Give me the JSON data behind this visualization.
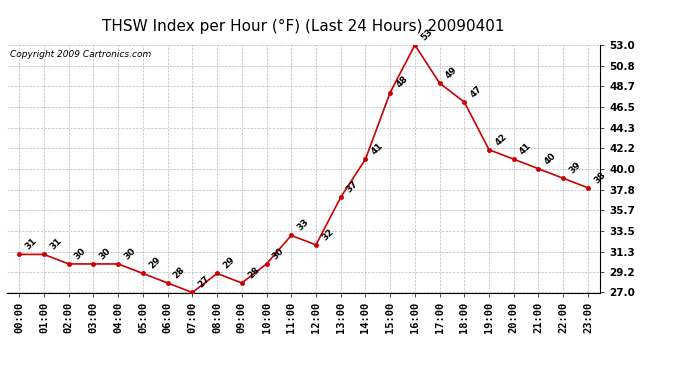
{
  "title": "THSW Index per Hour (°F) (Last 24 Hours) 20090401",
  "copyright": "Copyright 2009 Cartronics.com",
  "hours": [
    "00:00",
    "01:00",
    "02:00",
    "03:00",
    "04:00",
    "05:00",
    "06:00",
    "07:00",
    "08:00",
    "09:00",
    "10:00",
    "11:00",
    "12:00",
    "13:00",
    "14:00",
    "15:00",
    "16:00",
    "17:00",
    "18:00",
    "19:00",
    "20:00",
    "21:00",
    "22:00",
    "23:00"
  ],
  "values": [
    31,
    31,
    30,
    30,
    30,
    29,
    28,
    27,
    29,
    28,
    30,
    33,
    32,
    37,
    41,
    48,
    53,
    49,
    47,
    42,
    41,
    40,
    39,
    38
  ],
  "line_color": "#cc0000",
  "marker_color": "#cc0000",
  "background_color": "#ffffff",
  "grid_color": "#aaaaaa",
  "ylim_min": 27.0,
  "ylim_max": 53.0,
  "yticks": [
    27.0,
    29.2,
    31.3,
    33.5,
    35.7,
    37.8,
    40.0,
    42.2,
    44.3,
    46.5,
    48.7,
    50.8,
    53.0
  ],
  "title_fontsize": 11,
  "copyright_fontsize": 6.5,
  "label_fontsize": 6.5,
  "tick_fontsize": 7.5
}
